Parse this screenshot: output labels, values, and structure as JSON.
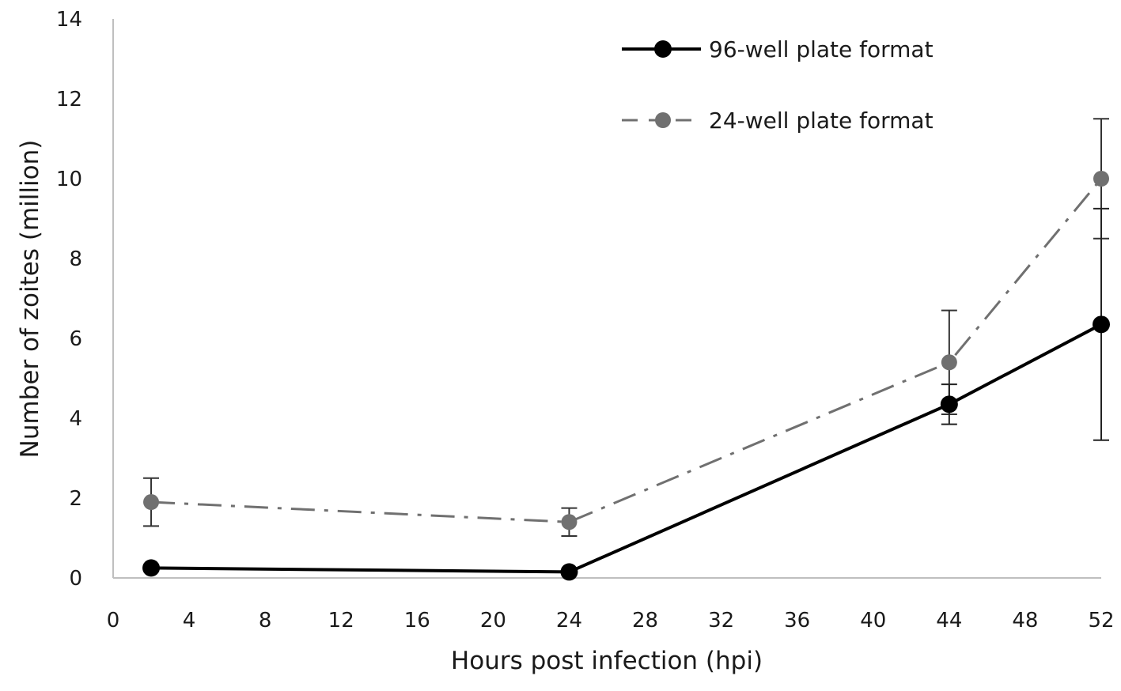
{
  "chart_data": {
    "type": "line",
    "xlabel": "Hours post infection (hpi)",
    "ylabel": "Number of zoites (million)",
    "xlim": [
      0,
      52
    ],
    "ylim": [
      0,
      14
    ],
    "xticks": [
      0,
      4,
      8,
      12,
      16,
      20,
      24,
      28,
      32,
      36,
      40,
      44,
      48,
      52
    ],
    "yticks": [
      0,
      2,
      4,
      6,
      8,
      10,
      12,
      14
    ],
    "grid": false,
    "legend_position": "top-right",
    "series": [
      {
        "name": "96-well plate format",
        "style": "solid",
        "color": "#000000",
        "x": [
          2,
          24,
          44,
          52
        ],
        "y": [
          0.25,
          0.15,
          4.35,
          6.35
        ],
        "err": [
          null,
          null,
          0.5,
          2.9
        ]
      },
      {
        "name": "24-well plate format",
        "style": "dash-dot",
        "color": "#707070",
        "x": [
          2,
          24,
          44,
          52
        ],
        "y": [
          1.9,
          1.4,
          5.4,
          10.0
        ],
        "err": [
          0.6,
          0.35,
          1.3,
          1.5
        ]
      }
    ]
  }
}
